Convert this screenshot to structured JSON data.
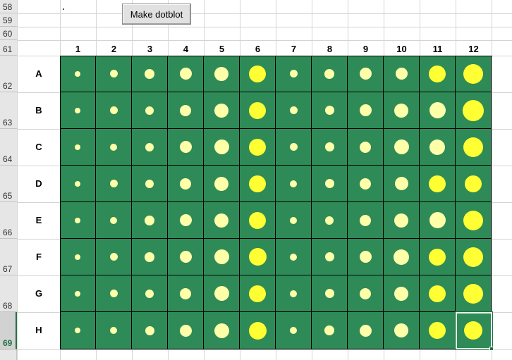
{
  "button": {
    "label": "Make dotblot"
  },
  "row_headers": [
    "58",
    "59",
    "60",
    "61",
    "62",
    "63",
    "64",
    "65",
    "66",
    "67",
    "68",
    "69"
  ],
  "selected_row": "69",
  "plate": {
    "columns": [
      "1",
      "2",
      "3",
      "4",
      "5",
      "6",
      "7",
      "8",
      "9",
      "10",
      "11",
      "12"
    ],
    "rows": [
      "A",
      "B",
      "C",
      "D",
      "E",
      "F",
      "G",
      "H"
    ],
    "well_color": "#2e8b57",
    "dot_color_light": "#ffffaa",
    "dot_color_bright": "#ffff33",
    "dot_relative_size": [
      [
        0.2,
        0.27,
        0.34,
        0.42,
        0.5,
        0.6,
        0.28,
        0.34,
        0.42,
        0.42,
        0.6,
        0.7
      ],
      [
        0.2,
        0.27,
        0.3,
        0.4,
        0.5,
        0.6,
        0.28,
        0.32,
        0.42,
        0.5,
        0.58,
        0.74
      ],
      [
        0.2,
        0.26,
        0.3,
        0.42,
        0.52,
        0.6,
        0.28,
        0.32,
        0.4,
        0.52,
        0.56,
        0.7
      ],
      [
        0.2,
        0.27,
        0.3,
        0.4,
        0.5,
        0.6,
        0.26,
        0.32,
        0.4,
        0.48,
        0.6,
        0.6
      ],
      [
        0.2,
        0.26,
        0.34,
        0.42,
        0.5,
        0.6,
        0.26,
        0.3,
        0.4,
        0.5,
        0.58,
        0.7
      ],
      [
        0.2,
        0.27,
        0.34,
        0.42,
        0.52,
        0.62,
        0.26,
        0.32,
        0.42,
        0.56,
        0.6,
        0.7
      ],
      [
        0.2,
        0.27,
        0.3,
        0.4,
        0.52,
        0.6,
        0.26,
        0.32,
        0.4,
        0.5,
        0.6,
        0.7
      ],
      [
        0.2,
        0.26,
        0.32,
        0.42,
        0.52,
        0.62,
        0.26,
        0.34,
        0.42,
        0.5,
        0.6,
        0.64
      ]
    ]
  }
}
